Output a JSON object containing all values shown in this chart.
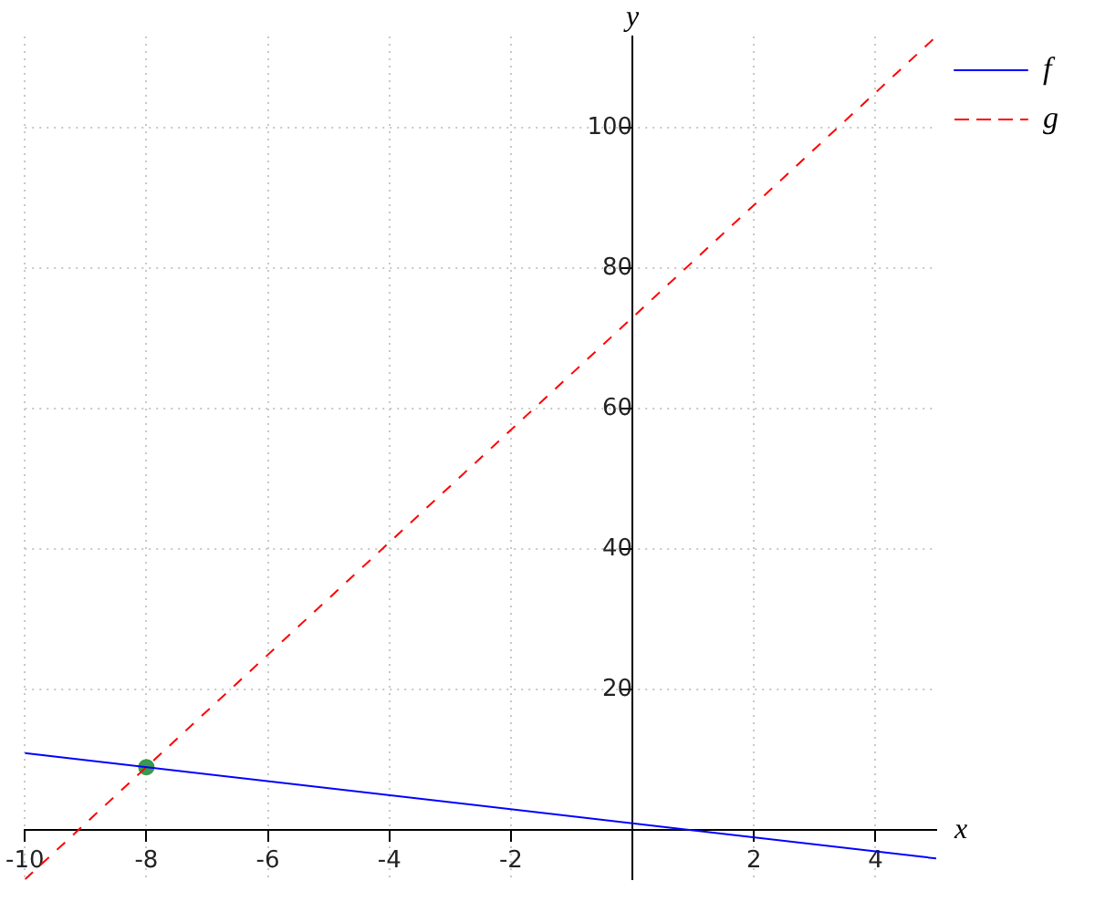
{
  "chart_data": {
    "type": "line",
    "xlabel": "x",
    "ylabel": "y",
    "xlim": [
      -10,
      5
    ],
    "ylim": [
      -7,
      113
    ],
    "xticks": [
      -10,
      -8,
      -6,
      -4,
      -2,
      2,
      4
    ],
    "yticks": [
      20,
      40,
      60,
      80,
      100
    ],
    "grid": true,
    "legend": "top right",
    "marker": "none",
    "series": [
      {
        "name": "f",
        "color": "#0000ff",
        "x": [
          -10,
          5
        ],
        "values": [
          11,
          -4
        ],
        "line_style": "solid"
      },
      {
        "name": "g",
        "color": "#ff0000",
        "x": [
          -10,
          5
        ],
        "values": [
          -7,
          113
        ],
        "line_style": "dashed"
      },
      {
        "type": "scatter",
        "color": "#3a9a50",
        "x": [
          -8
        ],
        "values": [
          9
        ],
        "marker": "circle"
      }
    ]
  }
}
